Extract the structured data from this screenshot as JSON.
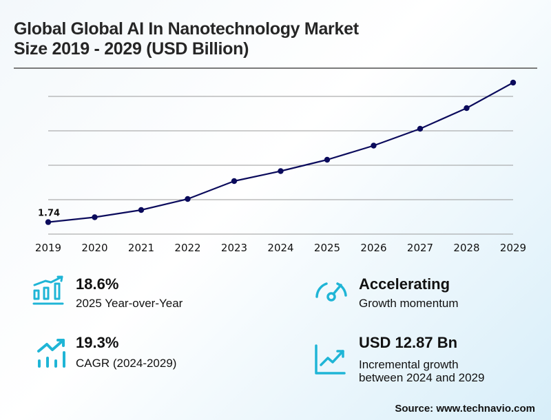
{
  "title_line1": "Global Global AI In Nanotechnology Market",
  "title_line2": "Size 2019 - 2029 (USD Billion)",
  "chart_data": {
    "type": "line",
    "title": "Global Global AI In Nanotechnology Market Size 2019 - 2029 (USD Billion)",
    "xlabel": "",
    "ylabel": "",
    "x": [
      "2019",
      "2020",
      "2021",
      "2022",
      "2023",
      "2024",
      "2025",
      "2026",
      "2027",
      "2028",
      "2029"
    ],
    "series": [
      {
        "name": "Market Size (USD Billion)",
        "values": [
          1.74,
          2.45,
          3.5,
          5.1,
          7.7,
          9.15,
          10.8,
          12.85,
          15.3,
          18.3,
          22.0
        ]
      }
    ],
    "data_labels": [
      {
        "index": 0,
        "text": "1.74"
      }
    ],
    "ylim": [
      0,
      20
    ],
    "gridlines": [
      0,
      5,
      10,
      15,
      20
    ],
    "grid": true,
    "legend": "none",
    "line_color": "#0b0b5c",
    "grid_color": "#9a9a9a"
  },
  "stats": [
    {
      "value": "18.6%",
      "label": "2025 Year-over-Year",
      "icon": "bar-chart-growth-icon"
    },
    {
      "value": "Accelerating",
      "label": "Growth momentum",
      "icon": "speedometer-icon"
    },
    {
      "value": "19.3%",
      "label": "CAGR (2024-2029)",
      "icon": "trend-up-bars-icon"
    },
    {
      "value": "USD 12.87 Bn",
      "label_line1": "Incremental growth",
      "label_line2": "between 2024 and 2029",
      "icon": "line-chart-up-icon"
    }
  ],
  "icon_color": "#1fb5d6",
  "source": "Source: www.technavio.com"
}
